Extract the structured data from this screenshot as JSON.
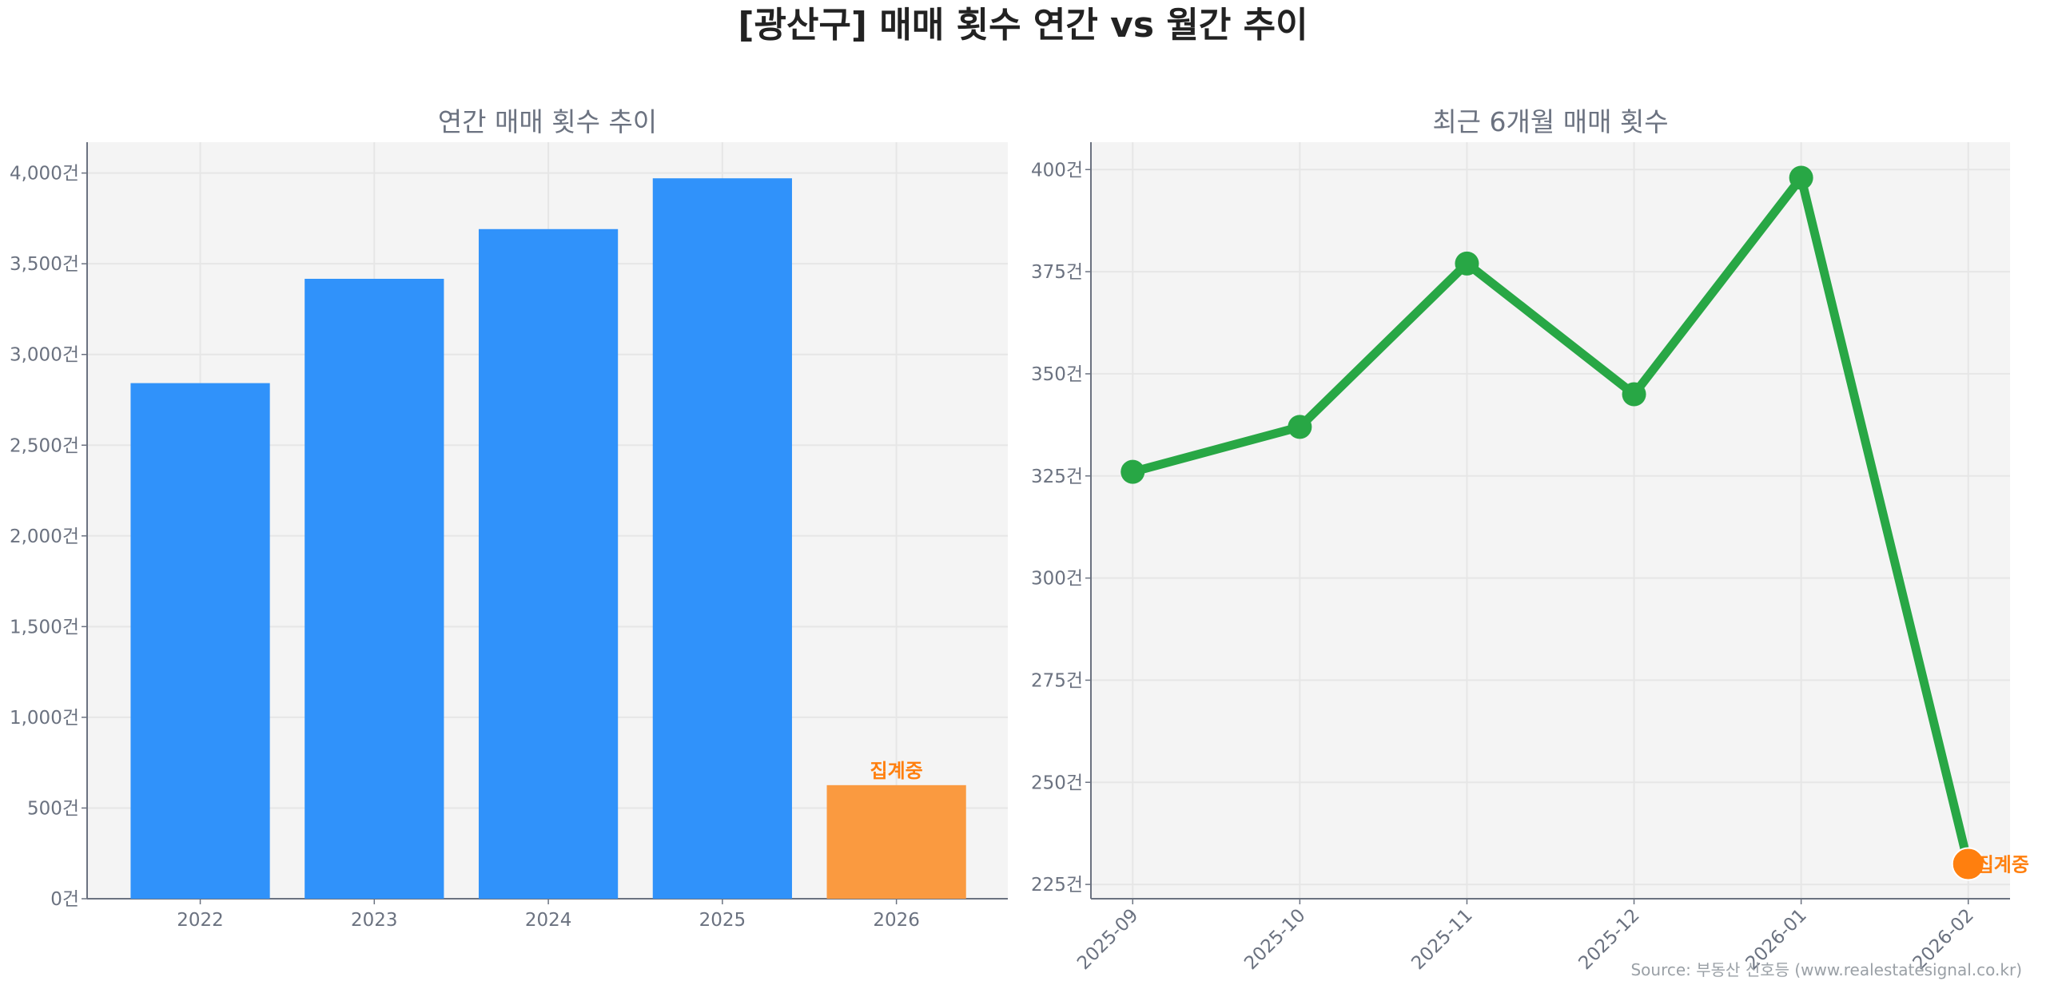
{
  "title": "[광산구] 매매 횟수 연간 vs 월간 추이",
  "source": "Source: 부동산 신호등 (www.realestatesignal.co.kr)",
  "chart_data": [
    {
      "type": "bar",
      "title": "연간 매매 횟수 추이",
      "categories": [
        "2022",
        "2023",
        "2024",
        "2025",
        "2026"
      ],
      "values": [
        2842,
        3417,
        3691,
        3971,
        626
      ],
      "colors": [
        "#3092fa",
        "#3092fa",
        "#3092fa",
        "#3092fa",
        "#fa9a40"
      ],
      "annotations": [
        {
          "category": "2026",
          "text": "집계중"
        }
      ],
      "ylim": [
        0,
        4170
      ],
      "yticks": [
        0,
        500,
        1000,
        1500,
        2000,
        2500,
        3000,
        3500,
        4000
      ],
      "ytick_labels": [
        "0건",
        "500건",
        "1,000건",
        "1,500건",
        "2,000건",
        "2,500건",
        "3,000건",
        "3,500건",
        "4,000건"
      ],
      "xlabel": "",
      "ylabel": "",
      "grid": true
    },
    {
      "type": "line",
      "title": "최근 6개월 매매 횟수",
      "categories": [
        "2025-09",
        "2025-10",
        "2025-11",
        "2025-12",
        "2026-01",
        "2026-02"
      ],
      "values": [
        326,
        337,
        377,
        345,
        398,
        230
      ],
      "line_color": "#28a745",
      "highlight": {
        "category": "2026-02",
        "color": "#ff7f0e",
        "text": "집계중"
      },
      "ylim": [
        221.5,
        406.7
      ],
      "yticks": [
        225,
        250,
        275,
        300,
        325,
        350,
        375,
        400
      ],
      "ytick_labels": [
        "225건",
        "250건",
        "275건",
        "300건",
        "325건",
        "350건",
        "375건",
        "400건"
      ],
      "xlabel": "",
      "ylabel": "",
      "grid": true
    }
  ]
}
